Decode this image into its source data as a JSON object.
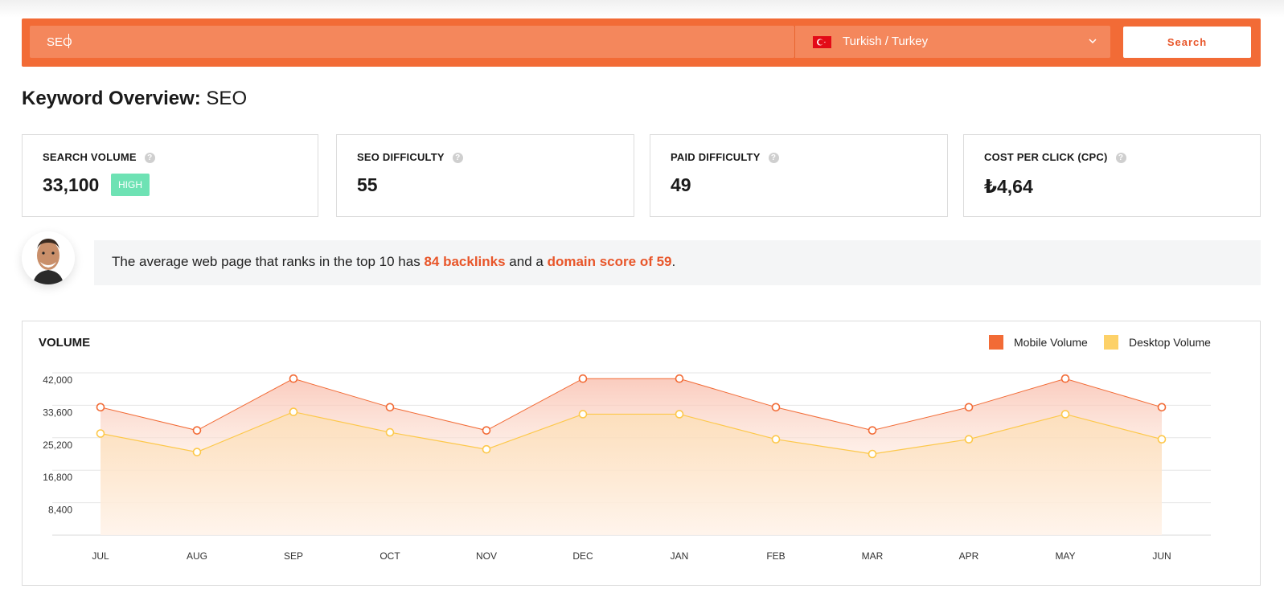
{
  "search": {
    "keyword": "SEO",
    "language": "Turkish / Turkey",
    "button_label": "Search"
  },
  "title": {
    "prefix": "Keyword Overview:",
    "keyword": "SEO"
  },
  "metrics": {
    "search_volume": {
      "label": "SEARCH VOLUME",
      "value": "33,100",
      "badge": "HIGH"
    },
    "seo_difficulty": {
      "label": "SEO DIFFICULTY",
      "value": "55"
    },
    "paid_difficulty": {
      "label": "PAID DIFFICULTY",
      "value": "49"
    },
    "cpc": {
      "label": "COST PER CLICK (CPC)",
      "value": "₺4,64"
    }
  },
  "tip": {
    "text_before": "The average web page that ranks in the top 10 has ",
    "backlinks": "84 backlinks",
    "text_middle": " and a ",
    "domain_score": "domain score of 59",
    "text_after": "."
  },
  "colors": {
    "brand_orange": "#f26b36",
    "mobile": "#f26b36",
    "desktop": "#fdd168",
    "badge_green": "#6ee2b4"
  },
  "chart_data": {
    "type": "area",
    "title": "VOLUME",
    "categories": [
      "JUL",
      "AUG",
      "SEP",
      "OCT",
      "NOV",
      "DEC",
      "JAN",
      "FEB",
      "MAR",
      "APR",
      "MAY",
      "JUN"
    ],
    "series": [
      {
        "name": "Mobile Volume",
        "values": [
          33100,
          27100,
          40500,
          33100,
          27100,
          40500,
          40500,
          33100,
          27100,
          33100,
          40500,
          33100
        ]
      },
      {
        "name": "Desktop Volume",
        "values": [
          26300,
          21500,
          31900,
          26600,
          22200,
          31300,
          31300,
          24800,
          21000,
          24800,
          31300,
          24800
        ]
      }
    ],
    "y_ticks": [
      "8,400",
      "16,800",
      "25,200",
      "33,600",
      "42,000"
    ],
    "ylim": [
      0,
      42000
    ],
    "grid": true,
    "legend_position": "top-right"
  }
}
